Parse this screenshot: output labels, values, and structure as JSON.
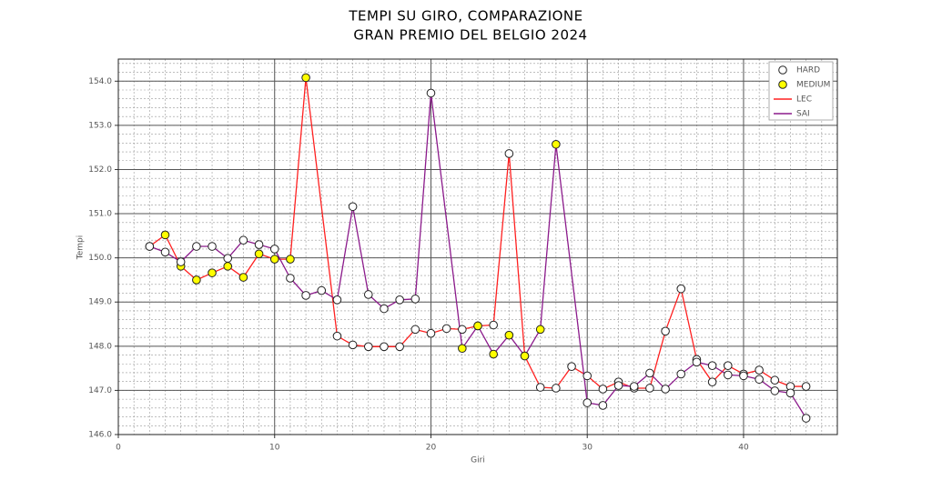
{
  "chart_data": {
    "type": "line",
    "title": "TEMPI SU GIRO, COMPARAZIONE",
    "subtitle": "GRAN PREMIO DEL BELGIO 2024",
    "x_label": "Giri",
    "y_label": "Tempi",
    "xlim": [
      0,
      46
    ],
    "xticks": [
      0,
      10,
      20,
      30,
      40
    ],
    "ylim": [
      146,
      154.5
    ],
    "yticks": [
      {
        "value": 146,
        "label": "146.0"
      },
      {
        "value": 147,
        "label": "147.0"
      },
      {
        "value": 148,
        "label": "148.0"
      },
      {
        "value": 149,
        "label": "149.0"
      },
      {
        "value": 150,
        "label": "150.0"
      },
      {
        "value": 151,
        "label": "151.0"
      },
      {
        "value": 152,
        "label": "152.0"
      },
      {
        "value": 153,
        "label": "153.0"
      },
      {
        "value": 154,
        "label": "154.0"
      }
    ],
    "grid": true,
    "legend": "upper right",
    "compounds": [
      {
        "name": "HARD",
        "color": "#ffffff"
      },
      {
        "name": "MEDIUM",
        "color": "#ffff00"
      }
    ],
    "series": [
      {
        "name": "LEC",
        "color": "#ff2020",
        "x": [
          2,
          3,
          4,
          5,
          6,
          7,
          8,
          9,
          10,
          11,
          12,
          14,
          15,
          16,
          17,
          18,
          19,
          20,
          21,
          22,
          23,
          24,
          25,
          26,
          27,
          28,
          29,
          30,
          31,
          32,
          33,
          34,
          35,
          36,
          37,
          38,
          39,
          40,
          41,
          42,
          43,
          44
        ],
        "values": [
          150.26,
          150.52,
          149.81,
          149.5,
          149.66,
          149.81,
          149.56,
          150.09,
          149.97,
          149.97,
          154.08,
          148.23,
          148.03,
          147.99,
          147.99,
          147.99,
          148.38,
          148.29,
          148.4,
          148.38,
          148.46,
          148.48,
          152.36,
          147.78,
          147.07,
          147.05,
          147.54,
          147.33,
          147.03,
          147.19,
          147.05,
          147.05,
          148.34,
          149.3,
          147.7,
          147.19,
          147.56,
          147.37,
          147.46,
          147.23,
          147.09,
          147.09
        ],
        "marker_colors": [
          "#ffffff",
          "#ffff00",
          "#ffff00",
          "#ffff00",
          "#ffff00",
          "#ffff00",
          "#ffff00",
          "#ffff00",
          "#ffff00",
          "#ffff00",
          "#ffff00",
          "#ffffff",
          "#ffffff",
          "#ffffff",
          "#ffffff",
          "#ffffff",
          "#ffffff",
          "#ffffff",
          "#ffffff",
          "#ffffff",
          "#ffffff",
          "#ffffff",
          "#ffffff",
          "#ffffff",
          "#ffffff",
          "#ffffff",
          "#ffffff",
          "#ffffff",
          "#ffffff",
          "#ffffff",
          "#ffffff",
          "#ffffff",
          "#ffffff",
          "#ffffff",
          "#ffffff",
          "#ffffff",
          "#ffffff",
          "#ffffff",
          "#ffffff",
          "#ffffff",
          "#ffffff",
          "#ffffff"
        ]
      },
      {
        "name": "SAI",
        "color": "#8b1a8b",
        "x": [
          2,
          3,
          4,
          5,
          6,
          7,
          8,
          9,
          10,
          11,
          12,
          13,
          14,
          15,
          16,
          17,
          18,
          19,
          20,
          22,
          23,
          24,
          25,
          26,
          27,
          28,
          30,
          31,
          32,
          33,
          34,
          35,
          36,
          37,
          38,
          39,
          40,
          41,
          42,
          43,
          44
        ],
        "values": [
          150.26,
          150.13,
          149.91,
          150.26,
          150.26,
          149.99,
          150.4,
          150.3,
          150.2,
          149.54,
          149.15,
          149.26,
          149.05,
          151.16,
          149.17,
          148.85,
          149.05,
          149.07,
          153.73,
          147.95,
          148.46,
          147.82,
          148.25,
          147.78,
          148.38,
          152.57,
          146.72,
          146.66,
          147.11,
          147.09,
          147.39,
          147.03,
          147.37,
          147.64,
          147.56,
          147.35,
          147.33,
          147.25,
          146.99,
          146.94,
          146.37
        ],
        "marker_colors": [
          "#ffffff",
          "#ffffff",
          "#ffffff",
          "#ffffff",
          "#ffffff",
          "#ffffff",
          "#ffffff",
          "#ffffff",
          "#ffffff",
          "#ffffff",
          "#ffffff",
          "#ffffff",
          "#ffffff",
          "#ffffff",
          "#ffffff",
          "#ffffff",
          "#ffffff",
          "#ffffff",
          "#ffffff",
          "#ffff00",
          "#ffff00",
          "#ffff00",
          "#ffff00",
          "#ffff00",
          "#ffff00",
          "#ffff00",
          "#ffffff",
          "#ffffff",
          "#ffffff",
          "#ffffff",
          "#ffffff",
          "#ffffff",
          "#ffffff",
          "#ffffff",
          "#ffffff",
          "#ffffff",
          "#ffffff",
          "#ffffff",
          "#ffffff",
          "#ffffff",
          "#ffffff"
        ]
      }
    ]
  }
}
